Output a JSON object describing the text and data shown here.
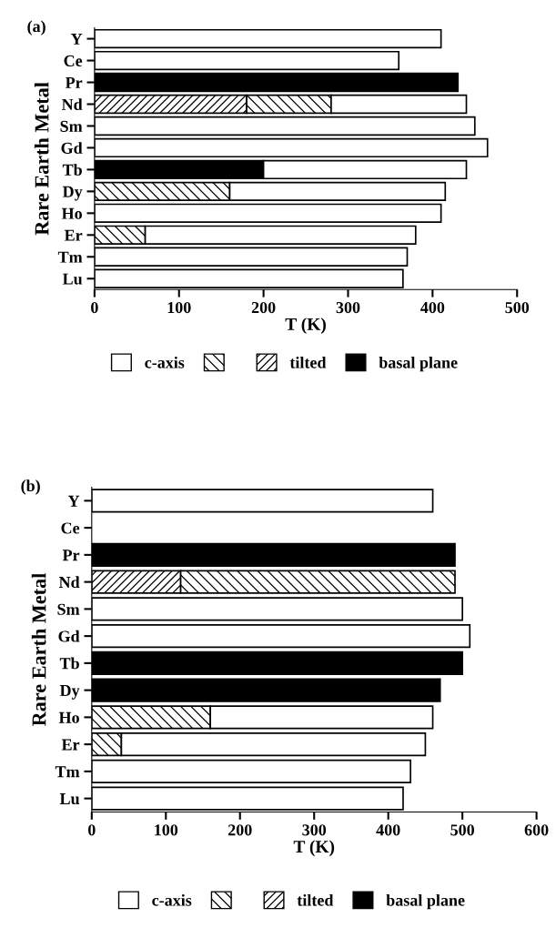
{
  "chart_data": [
    {
      "type": "bar",
      "orientation": "horizontal",
      "stacked": true,
      "title": "(a)",
      "xlabel": "T (K)",
      "ylabel": "Rare Earth Metal",
      "categories": [
        "Y",
        "Ce",
        "Pr",
        "Nd",
        "Sm",
        "Gd",
        "Tb",
        "Dy",
        "Ho",
        "Er",
        "Tm",
        "Lu"
      ],
      "series": [
        {
          "name": "basal plane",
          "color": "#000000",
          "values": [
            null,
            null,
            430,
            null,
            null,
            null,
            200,
            null,
            null,
            null,
            null,
            null
          ]
        },
        {
          "name": "tilted",
          "color": "#000000",
          "values": [
            null,
            null,
            null,
            180,
            null,
            null,
            null,
            null,
            null,
            null,
            null,
            null
          ]
        },
        {
          "color": "#000000",
          "values": [
            null,
            null,
            null,
            100,
            null,
            null,
            null,
            160,
            null,
            60,
            null,
            null
          ]
        },
        {
          "name": "c-axis",
          "color": "#ffffff",
          "values": [
            410,
            360,
            null,
            160,
            450,
            465,
            240,
            255,
            410,
            320,
            370,
            365
          ]
        }
      ],
      "xlim": [
        0,
        500
      ],
      "xticks": [
        0,
        100,
        200,
        300,
        400,
        500
      ],
      "legend": "bottom",
      "grid": false
    },
    {
      "type": "bar",
      "orientation": "horizontal",
      "stacked": true,
      "title": "(b)",
      "xlabel": "T (K)",
      "ylabel": "Rare Earth Metal",
      "categories": [
        "Y",
        "Ce",
        "Pr",
        "Nd",
        "Sm",
        "Gd",
        "Tb",
        "Dy",
        "Ho",
        "Er",
        "Tm",
        "Lu"
      ],
      "series": [
        {
          "name": "basal plane",
          "color": "#000000",
          "values": [
            null,
            null,
            490,
            null,
            null,
            null,
            500,
            470,
            null,
            null,
            null,
            null
          ]
        },
        {
          "name": "tilted",
          "color": "#000000",
          "values": [
            null,
            null,
            null,
            120,
            null,
            null,
            null,
            null,
            null,
            null,
            null,
            null
          ]
        },
        {
          "color": "#000000",
          "values": [
            null,
            null,
            null,
            370,
            null,
            null,
            null,
            null,
            160,
            40,
            null,
            null
          ]
        },
        {
          "name": "c-axis",
          "color": "#ffffff",
          "values": [
            460,
            null,
            null,
            null,
            500,
            510,
            null,
            null,
            300,
            410,
            430,
            420
          ]
        }
      ],
      "xlim": [
        0,
        600
      ],
      "xticks": [
        0,
        100,
        200,
        300,
        400,
        500,
        600
      ],
      "legend": "bottom",
      "grid": false
    }
  ]
}
